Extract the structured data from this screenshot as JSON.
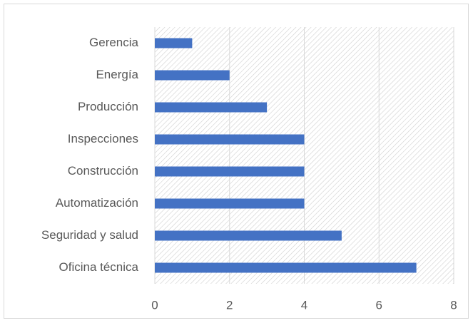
{
  "chart_data": {
    "type": "barh",
    "categories": [
      "Gerencia",
      "Energía",
      "Producción",
      "Inspecciones",
      "Construcción",
      "Automatización",
      "Seguridad y salud",
      "Oficina técnica"
    ],
    "values": [
      1,
      2,
      3,
      4,
      4,
      4,
      5,
      7
    ],
    "color": "#4472c4",
    "xlim": [
      0,
      8
    ],
    "xticks": [
      0,
      2,
      4,
      6,
      8
    ],
    "grid": true
  }
}
